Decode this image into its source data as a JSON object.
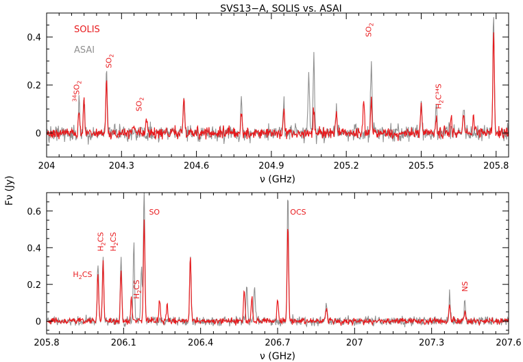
{
  "title": "SVS13−A, SOLIS vs. ASAI",
  "ylabel": "Fν (Jy)",
  "colors": {
    "SOLIS": "#e8191c",
    "ASAI": "#8f8f8f"
  },
  "chart_data": [
    {
      "type": "line",
      "xlabel": "ν (GHz)",
      "xlim": [
        204.0,
        205.85
      ],
      "ylim": [
        -0.1,
        0.5
      ],
      "xticks": [
        "204",
        "204.3",
        "204.6",
        "204.9",
        "205.2",
        "205.5",
        "205.8"
      ],
      "xtick_values": [
        204.0,
        204.3,
        204.6,
        204.9,
        205.2,
        205.5,
        205.8
      ],
      "yticks": [
        "0",
        "0.2",
        "0.4"
      ],
      "ytick_values": [
        0,
        0.2,
        0.4
      ],
      "legend": {
        "placement": "top-left",
        "entries": [
          "SOLIS",
          "ASAI"
        ]
      },
      "series": [
        {
          "name": "SOLIS",
          "color": "#e8191c",
          "noise": 0.022,
          "peaks": [
            [
              204.13,
              0.1
            ],
            [
              204.15,
              0.14
            ],
            [
              204.24,
              0.22
            ],
            [
              204.35,
              0.04
            ],
            [
              204.4,
              0.05
            ],
            [
              204.55,
              0.15
            ],
            [
              204.78,
              0.08
            ],
            [
              204.95,
              0.1
            ],
            [
              205.07,
              0.11
            ],
            [
              205.16,
              0.08
            ],
            [
              205.27,
              0.13
            ],
            [
              205.3,
              0.14
            ],
            [
              205.5,
              0.12
            ],
            [
              205.56,
              0.07
            ],
            [
              205.62,
              0.07
            ],
            [
              205.67,
              0.09
            ],
            [
              205.71,
              0.08
            ],
            [
              205.79,
              0.43
            ]
          ]
        },
        {
          "name": "ASAI",
          "color": "#8f8f8f",
          "noise": 0.032,
          "peaks": [
            [
              204.13,
              0.13
            ],
            [
              204.15,
              0.15
            ],
            [
              204.24,
              0.26
            ],
            [
              204.55,
              0.14
            ],
            [
              204.78,
              0.15
            ],
            [
              204.95,
              0.12
            ],
            [
              205.05,
              0.24
            ],
            [
              205.07,
              0.31
            ],
            [
              205.16,
              0.1
            ],
            [
              205.3,
              0.29
            ],
            [
              205.5,
              0.14
            ],
            [
              205.56,
              0.13
            ],
            [
              205.67,
              0.12
            ],
            [
              205.79,
              0.5
            ]
          ]
        }
      ],
      "annotations": [
        {
          "pre": "34",
          "text": "SO",
          "sub": "2",
          "post": "",
          "x": 204.13,
          "y": 0.13,
          "rotate": true
        },
        {
          "pre": "",
          "text": "SO",
          "sub": "2",
          "post": "",
          "x": 204.26,
          "y": 0.27,
          "rotate": true
        },
        {
          "pre": "",
          "text": "SO",
          "sub": "2",
          "post": "",
          "x": 204.38,
          "y": 0.09,
          "rotate": true
        },
        {
          "pre": "",
          "text": "SO",
          "sub": "2",
          "post": "",
          "x": 205.3,
          "y": 0.4,
          "rotate": true
        },
        {
          "pre": "",
          "text": "H",
          "sub": "2",
          "post": "C³⁴S",
          "x": 205.58,
          "y": 0.1,
          "rotate": true
        }
      ]
    },
    {
      "type": "line",
      "xlabel": "ν (GHz)",
      "xlim": [
        205.8,
        207.6
      ],
      "ylim": [
        -0.07,
        0.7
      ],
      "xticks": [
        "205.8",
        "206.1",
        "206.4",
        "206.7",
        "207",
        "207.3",
        "207.6"
      ],
      "xtick_values": [
        205.8,
        206.1,
        206.4,
        206.7,
        207.0,
        207.3,
        207.6
      ],
      "yticks": [
        "0",
        "0.2",
        "0.4",
        "0.6"
      ],
      "ytick_values": [
        0,
        0.2,
        0.4,
        0.6
      ],
      "series": [
        {
          "name": "SOLIS",
          "color": "#e8191c",
          "noise": 0.016,
          "peaks": [
            [
              206.0,
              0.26
            ],
            [
              206.02,
              0.32
            ],
            [
              206.09,
              0.28
            ],
            [
              206.13,
              0.13
            ],
            [
              206.18,
              0.55
            ],
            [
              206.24,
              0.12
            ],
            [
              206.27,
              0.1
            ],
            [
              206.36,
              0.36
            ],
            [
              206.57,
              0.18
            ],
            [
              206.6,
              0.13
            ],
            [
              206.7,
              0.12
            ],
            [
              206.74,
              0.52
            ],
            [
              206.89,
              0.07
            ],
            [
              207.37,
              0.09
            ],
            [
              207.43,
              0.05
            ]
          ]
        },
        {
          "name": "ASAI",
          "color": "#8f8f8f",
          "noise": 0.024,
          "peaks": [
            [
              206.0,
              0.32
            ],
            [
              206.02,
              0.35
            ],
            [
              206.09,
              0.35
            ],
            [
              206.14,
              0.41
            ],
            [
              206.17,
              0.3
            ],
            [
              206.18,
              0.7
            ],
            [
              206.36,
              0.37
            ],
            [
              206.58,
              0.19
            ],
            [
              206.61,
              0.2
            ],
            [
              206.74,
              0.7
            ],
            [
              206.89,
              0.09
            ],
            [
              207.37,
              0.14
            ],
            [
              207.43,
              0.12
            ]
          ]
        }
      ],
      "annotations": [
        {
          "pre": "",
          "text": "H",
          "sub": "2",
          "post": "CS",
          "x": 205.94,
          "y": 0.24,
          "rotate": false
        },
        {
          "pre": "",
          "text": "H",
          "sub": "2",
          "post": "CS",
          "x": 206.02,
          "y": 0.38,
          "rotate": true
        },
        {
          "pre": "",
          "text": "H",
          "sub": "2",
          "post": "CS",
          "x": 206.07,
          "y": 0.38,
          "rotate": true
        },
        {
          "pre": "",
          "text": "H",
          "sub": "2",
          "post": "CS",
          "x": 206.16,
          "y": 0.12,
          "rotate": true
        },
        {
          "pre": "",
          "text": "SO",
          "sub": "",
          "post": "",
          "x": 206.22,
          "y": 0.58,
          "rotate": false
        },
        {
          "pre": "",
          "text": "OCS",
          "sub": "",
          "post": "",
          "x": 206.78,
          "y": 0.58,
          "rotate": false
        },
        {
          "pre": "",
          "text": "NS",
          "sub": "",
          "post": "",
          "x": 207.44,
          "y": 0.16,
          "rotate": true
        }
      ]
    }
  ]
}
